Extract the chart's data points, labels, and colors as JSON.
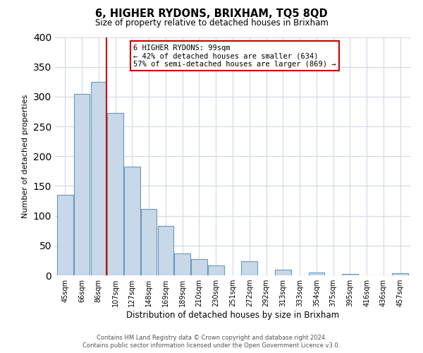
{
  "title": "6, HIGHER RYDONS, BRIXHAM, TQ5 8QD",
  "subtitle": "Size of property relative to detached houses in Brixham",
  "xlabel": "Distribution of detached houses by size in Brixham",
  "ylabel": "Number of detached properties",
  "bin_labels": [
    "45sqm",
    "66sqm",
    "86sqm",
    "107sqm",
    "127sqm",
    "148sqm",
    "169sqm",
    "189sqm",
    "210sqm",
    "230sqm",
    "251sqm",
    "272sqm",
    "292sqm",
    "313sqm",
    "333sqm",
    "354sqm",
    "375sqm",
    "395sqm",
    "416sqm",
    "436sqm",
    "457sqm"
  ],
  "bar_heights": [
    135,
    305,
    325,
    273,
    183,
    112,
    83,
    37,
    27,
    17,
    0,
    24,
    0,
    10,
    0,
    5,
    0,
    2,
    0,
    0,
    3
  ],
  "bar_color": "#c8d8e8",
  "bar_edge_color": "#6699bb",
  "annotation_line1": "6 HIGHER RYDONS: 99sqm",
  "annotation_line2": "← 42% of detached houses are smaller (634)",
  "annotation_line3": "57% of semi-detached houses are larger (869) →",
  "annotation_box_color": "#ffffff",
  "annotation_box_edge_color": "#cc0000",
  "vline_color": "#cc0000",
  "ylim": [
    0,
    400
  ],
  "yticks": [
    0,
    50,
    100,
    150,
    200,
    250,
    300,
    350,
    400
  ],
  "footer1": "Contains HM Land Registry data © Crown copyright and database right 2024.",
  "footer2": "Contains public sector information licensed under the Open Government Licence v3.0.",
  "background_color": "#ffffff",
  "grid_color": "#d0d8e8"
}
